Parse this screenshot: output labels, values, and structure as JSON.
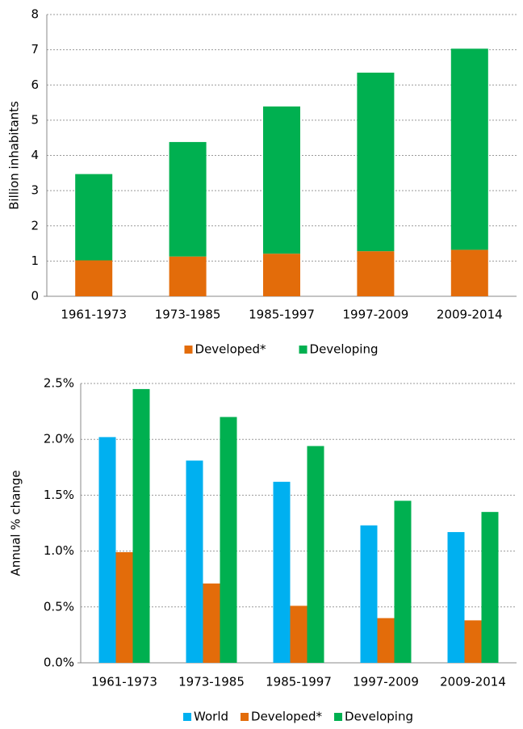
{
  "chart_data": [
    {
      "type": "stacked_bar",
      "y_label": "Billion inhabitants",
      "categories": [
        "1961-1973",
        "1973-1985",
        "1985-1997",
        "1997-2009",
        "2009-2014"
      ],
      "series": [
        {
          "name": "Developed*",
          "color": "#e36c0a",
          "values": [
            1.02,
            1.13,
            1.21,
            1.28,
            1.32
          ]
        },
        {
          "name": "Developing",
          "color": "#00b050",
          "values": [
            2.45,
            3.25,
            4.18,
            5.07,
            5.71
          ]
        }
      ],
      "ylim": [
        0,
        8
      ],
      "yticks": [
        0,
        1,
        2,
        3,
        4,
        5,
        6,
        7,
        8
      ],
      "grid": true
    },
    {
      "type": "grouped_bar",
      "y_label": "Annual % change",
      "categories": [
        "1961-1973",
        "1973-1985",
        "1985-1997",
        "1997-2009",
        "2009-2014"
      ],
      "series": [
        {
          "name": "World",
          "color": "#00b0f0",
          "values": [
            2.02,
            1.81,
            1.62,
            1.23,
            1.17
          ]
        },
        {
          "name": "Developed*",
          "color": "#e36c0a",
          "values": [
            0.99,
            0.71,
            0.51,
            0.4,
            0.38
          ]
        },
        {
          "name": "Developing",
          "color": "#00b050",
          "values": [
            2.45,
            2.2,
            1.94,
            1.45,
            1.35
          ]
        }
      ],
      "ylim": [
        0,
        2.5
      ],
      "yticks": [
        {
          "value": 0,
          "label": "0.0%"
        },
        {
          "value": 0.5,
          "label": "0.5%"
        },
        {
          "value": 1.0,
          "label": "1.0%"
        },
        {
          "value": 1.5,
          "label": "1.5%"
        },
        {
          "value": 2.0,
          "label": "2.0%"
        },
        {
          "value": 2.5,
          "label": "2.5%"
        }
      ],
      "grid": true
    }
  ]
}
